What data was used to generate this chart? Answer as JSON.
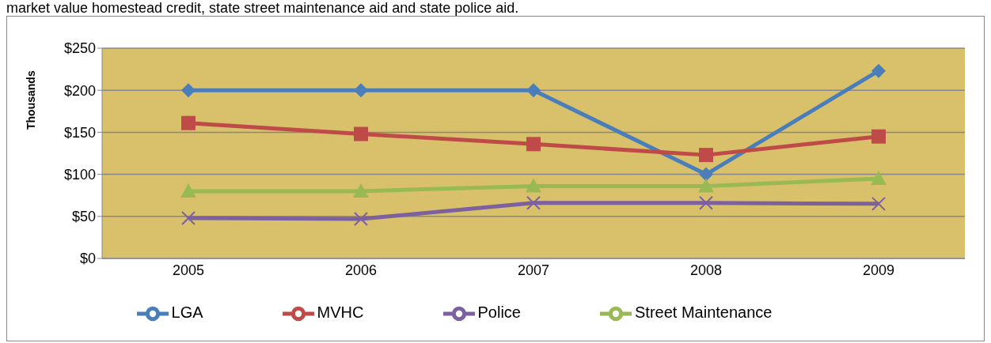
{
  "chart_data": {
    "type": "line",
    "annotations": [
      "market value homestead credit, state street maintenance aid and state police aid."
    ],
    "ylabel": "Thousands",
    "categories": [
      "2005",
      "2006",
      "2007",
      "2008",
      "2009"
    ],
    "series": [
      {
        "name": "LGA",
        "color": "#4a7ebb",
        "marker": "diamond",
        "values": [
          200,
          200,
          200,
          100,
          223
        ]
      },
      {
        "name": "MVHC",
        "color": "#be4b48",
        "marker": "square",
        "values": [
          161,
          148,
          136,
          123,
          145
        ]
      },
      {
        "name": "Street Maintenance",
        "color": "#98b954",
        "marker": "triangle",
        "values": [
          80,
          80,
          86,
          86,
          95
        ]
      },
      {
        "name": "Police",
        "color": "#7d60a0",
        "marker": "cross",
        "values": [
          48,
          47,
          66,
          66,
          65
        ]
      }
    ],
    "ylim": [
      0,
      250
    ],
    "yticks": [
      {
        "value": 0,
        "label": "$0"
      },
      {
        "value": 50,
        "label": "$50"
      },
      {
        "value": 100,
        "label": "$100"
      },
      {
        "value": 150,
        "label": "$150"
      },
      {
        "value": 200,
        "label": "$200"
      },
      {
        "value": 250,
        "label": "$250"
      }
    ],
    "grid": "y",
    "legend": "bottom",
    "line_style": "solid"
  }
}
